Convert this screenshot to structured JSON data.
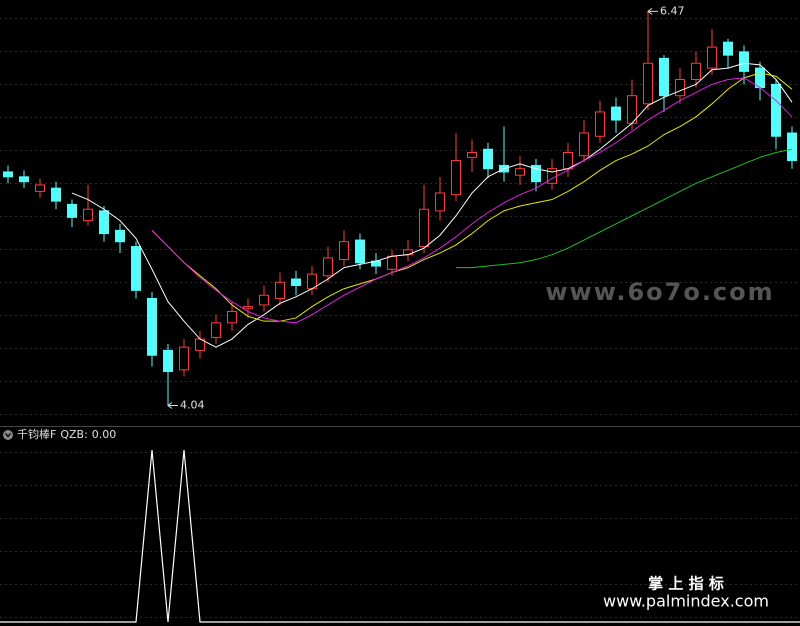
{
  "chart_data": {
    "type": "candlestick",
    "ylim": [
      3.92,
      6.54
    ],
    "open": [
      5.48,
      5.45,
      5.36,
      5.38,
      5.28,
      5.18,
      5.24,
      5.12,
      5.02,
      4.7,
      4.38,
      4.26,
      4.38,
      4.46,
      4.55,
      4.64,
      4.66,
      4.7,
      4.82,
      4.76,
      4.84,
      4.94,
      5.06,
      4.93,
      4.88,
      4.97,
      5.02,
      5.24,
      5.34,
      5.57,
      5.62,
      5.52,
      5.46,
      5.52,
      5.41,
      5.5,
      5.58,
      5.7,
      5.88,
      5.78,
      5.9,
      6.18,
      5.95,
      6.05,
      6.12,
      6.28,
      6.22,
      6.12,
      6.02,
      5.72
    ],
    "high": [
      5.52,
      5.49,
      5.44,
      5.42,
      5.31,
      5.4,
      5.27,
      5.16,
      5.05,
      4.74,
      4.42,
      4.45,
      4.5,
      4.6,
      4.68,
      4.7,
      4.78,
      4.86,
      4.87,
      4.9,
      5.02,
      5.12,
      5.1,
      4.98,
      5.0,
      5.06,
      5.4,
      5.45,
      5.72,
      5.68,
      5.66,
      5.76,
      5.58,
      5.56,
      5.56,
      5.66,
      5.8,
      5.92,
      5.94,
      6.05,
      6.47,
      6.2,
      6.12,
      6.22,
      6.36,
      6.3,
      6.26,
      6.16,
      6.05,
      5.76
    ],
    "low": [
      5.41,
      5.38,
      5.32,
      5.25,
      5.14,
      5.15,
      5.05,
      4.98,
      4.7,
      4.28,
      4.04,
      4.22,
      4.33,
      4.42,
      4.5,
      4.58,
      4.62,
      4.66,
      4.72,
      4.72,
      4.8,
      4.9,
      4.88,
      4.85,
      4.84,
      4.93,
      4.98,
      5.18,
      5.3,
      5.48,
      5.44,
      5.42,
      5.4,
      5.36,
      5.37,
      5.45,
      5.54,
      5.66,
      5.72,
      5.74,
      5.86,
      5.85,
      5.9,
      6.0,
      6.08,
      6.12,
      6.02,
      5.92,
      5.62,
      5.5
    ],
    "close": [
      5.45,
      5.42,
      5.4,
      5.3,
      5.2,
      5.25,
      5.1,
      5.05,
      4.75,
      4.35,
      4.25,
      4.4,
      4.45,
      4.55,
      4.62,
      4.65,
      4.72,
      4.8,
      4.78,
      4.85,
      4.95,
      5.05,
      4.92,
      4.9,
      4.96,
      5.0,
      5.25,
      5.35,
      5.55,
      5.6,
      5.5,
      5.48,
      5.5,
      5.42,
      5.5,
      5.6,
      5.72,
      5.85,
      5.8,
      5.95,
      6.15,
      5.95,
      6.05,
      6.15,
      6.25,
      6.2,
      6.1,
      6.0,
      5.7,
      5.55
    ],
    "up_color": "#ff3c3c",
    "down_color": "#54fcfc",
    "lines": [
      {
        "color": "#ffffff",
        "values": [
          null,
          null,
          null,
          null,
          5.35,
          5.31,
          5.25,
          5.18,
          5.07,
          4.88,
          4.68,
          4.56,
          4.45,
          4.4,
          4.45,
          4.54,
          4.6,
          4.67,
          4.71,
          4.76,
          4.82,
          4.89,
          4.91,
          4.93,
          4.96,
          4.97,
          5.01,
          5.09,
          5.21,
          5.35,
          5.45,
          5.5,
          5.53,
          5.5,
          5.48,
          5.5,
          5.55,
          5.62,
          5.7,
          5.78,
          5.89,
          5.94,
          5.98,
          6.02,
          6.11,
          6.12,
          6.15,
          6.14,
          6.05,
          5.91
        ]
      },
      {
        "color": "#e6e600",
        "values": [
          null,
          null,
          null,
          null,
          null,
          null,
          null,
          null,
          null,
          5.12,
          5.02,
          4.92,
          4.84,
          4.76,
          4.66,
          4.59,
          4.56,
          4.56,
          4.58,
          4.65,
          4.71,
          4.76,
          4.79,
          4.82,
          4.86,
          4.89,
          4.94,
          4.98,
          5.03,
          5.1,
          5.18,
          5.24,
          5.27,
          5.29,
          5.31,
          5.36,
          5.42,
          5.49,
          5.55,
          5.59,
          5.64,
          5.71,
          5.76,
          5.82,
          5.9,
          5.99,
          6.06,
          6.09,
          6.07,
          5.99
        ]
      },
      {
        "color": "#e020e0",
        "values": [
          null,
          null,
          null,
          null,
          null,
          null,
          null,
          null,
          null,
          5.12,
          5.02,
          4.92,
          4.83,
          4.75,
          4.68,
          4.62,
          4.58,
          4.56,
          4.55,
          4.6,
          4.66,
          4.72,
          4.77,
          4.82,
          4.86,
          4.9,
          4.95,
          5.01,
          5.08,
          5.16,
          5.23,
          5.29,
          5.34,
          5.38,
          5.44,
          5.49,
          5.55,
          5.6,
          5.66,
          5.73,
          5.8,
          5.86,
          5.92,
          5.97,
          6.02,
          6.05,
          6.06,
          6.0,
          5.92,
          5.82
        ]
      },
      {
        "color": "#20c020",
        "values": [
          null,
          null,
          null,
          null,
          null,
          null,
          null,
          null,
          null,
          null,
          null,
          null,
          null,
          null,
          null,
          null,
          null,
          null,
          null,
          null,
          null,
          null,
          null,
          null,
          null,
          null,
          null,
          null,
          4.89,
          4.89,
          4.9,
          4.91,
          4.92,
          4.94,
          4.97,
          5.01,
          5.06,
          5.11,
          5.16,
          5.21,
          5.26,
          5.31,
          5.36,
          5.41,
          5.45,
          5.49,
          5.53,
          5.57,
          5.6,
          5.62
        ]
      }
    ],
    "indicator": {
      "title": "千钧棒F",
      "name": "QZB",
      "value_label": "0.00",
      "color": "#ffffff",
      "ylim": [
        0,
        1
      ],
      "values": [
        0,
        0,
        0,
        0,
        0,
        0,
        0,
        0,
        0,
        1,
        0,
        1,
        0,
        0,
        0,
        0,
        0,
        0,
        0,
        0,
        0,
        0,
        0,
        0,
        0,
        0,
        0,
        0,
        0,
        0,
        0,
        0,
        0,
        0,
        0,
        0,
        0,
        0,
        0,
        0,
        0,
        0,
        0,
        0,
        0,
        0,
        0,
        0,
        0,
        0
      ]
    },
    "watermarks": [
      "www.6o7o.com",
      "掌 上 指 标",
      "www.palmindex.com"
    ]
  }
}
